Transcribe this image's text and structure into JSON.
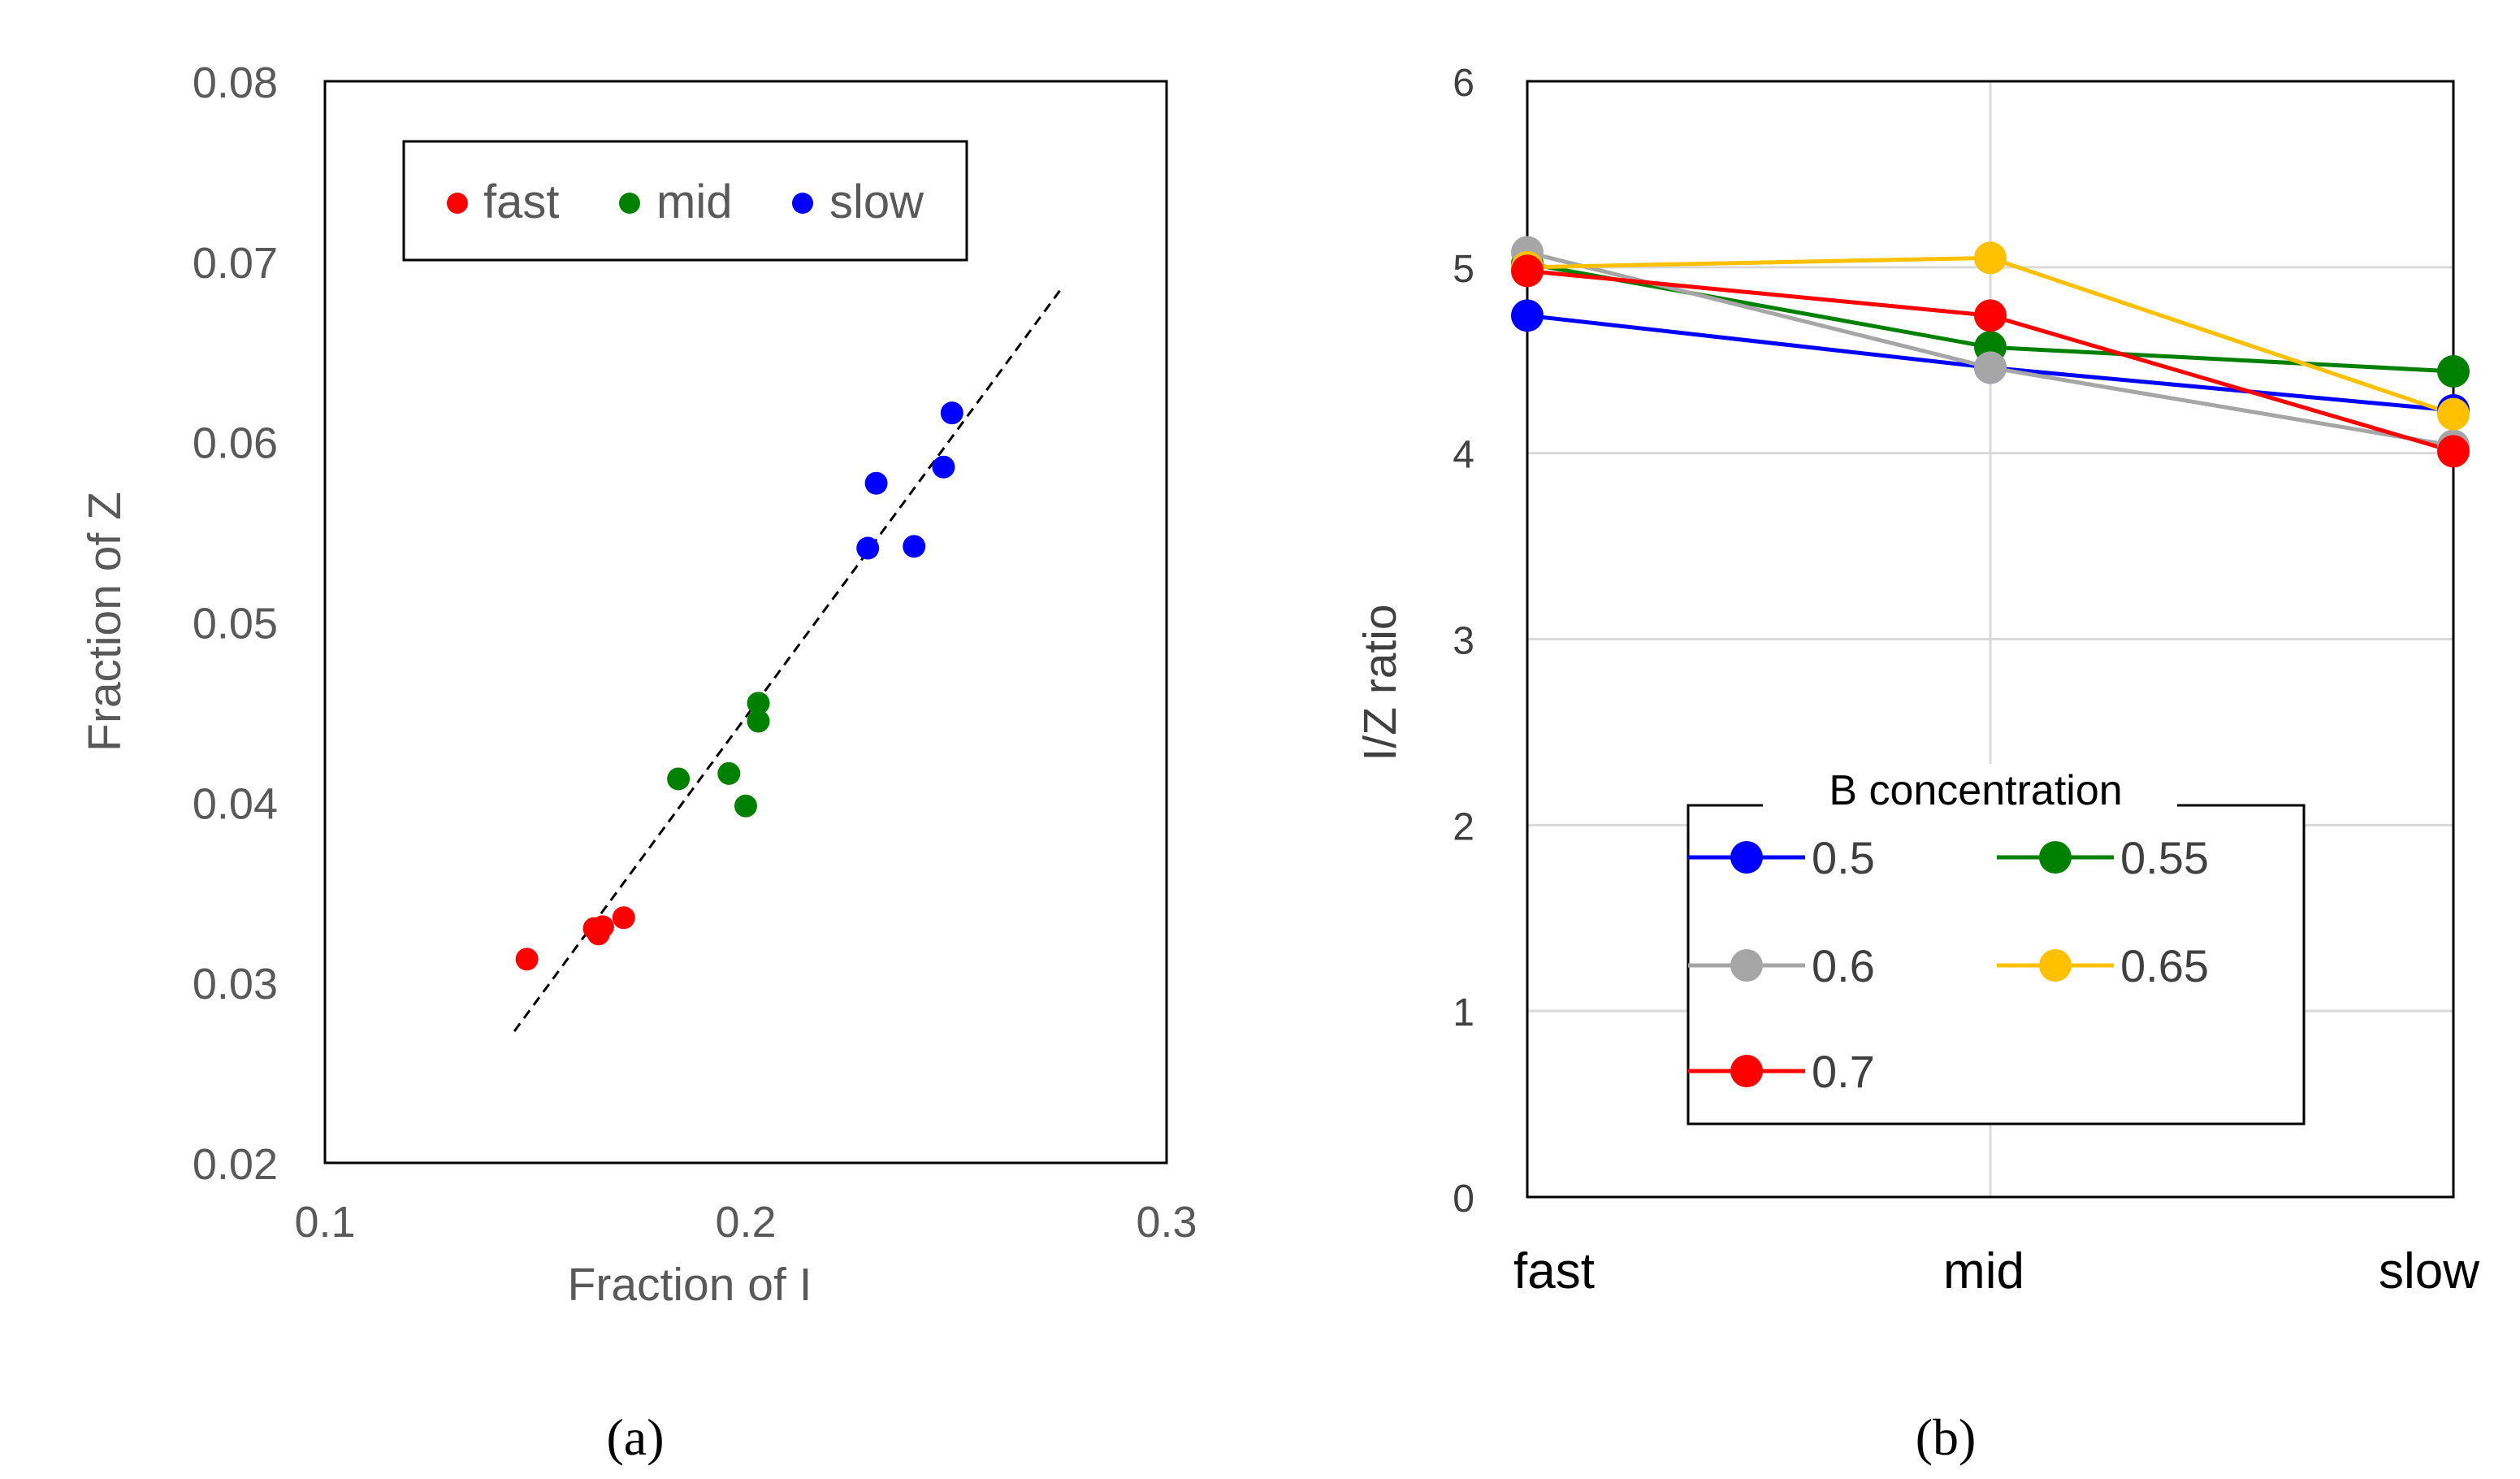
{
  "chart_data": [
    {
      "panel": "(a)",
      "type": "scatter",
      "title": "",
      "xlabel": "Fraction of I",
      "ylabel": "Fraction of Z",
      "xlim": [
        0.1,
        0.3
      ],
      "ylim": [
        0.02,
        0.08
      ],
      "xticks": [
        "0.1",
        "0.2",
        "0.3"
      ],
      "yticks": [
        "0.02",
        "0.03",
        "0.04",
        "0.05",
        "0.06",
        "0.07",
        "0.08"
      ],
      "grid": false,
      "legend_position": "top",
      "series": [
        {
          "name": "fast",
          "color": "#ff0000",
          "points": [
            [
              0.148,
              0.0313
            ],
            [
              0.164,
              0.033
            ],
            [
              0.165,
              0.0327
            ],
            [
              0.166,
              0.0331
            ],
            [
              0.171,
              0.0336
            ]
          ]
        },
        {
          "name": "mid",
          "color": "#008000",
          "points": [
            [
              0.184,
              0.0413
            ],
            [
              0.196,
              0.0416
            ],
            [
              0.2,
              0.0398
            ],
            [
              0.203,
              0.0455
            ],
            [
              0.203,
              0.0445
            ]
          ]
        },
        {
          "name": "slow",
          "color": "#0000ff",
          "points": [
            [
              0.229,
              0.0541
            ],
            [
              0.231,
              0.0577
            ],
            [
              0.24,
              0.0542
            ],
            [
              0.247,
              0.0586
            ],
            [
              0.249,
              0.0616
            ]
          ]
        }
      ],
      "trendline": {
        "style": "dashed",
        "x": [
          0.145,
          0.275
        ],
        "y": [
          0.0273,
          0.0685
        ]
      }
    },
    {
      "panel": "(b)",
      "type": "line",
      "title": "",
      "xlabel": "",
      "ylabel": "I/Z ratio",
      "categories": [
        "fast",
        "mid",
        "slow"
      ],
      "ylim": [
        0,
        6
      ],
      "yticks": [
        "0",
        "1",
        "2",
        "3",
        "4",
        "5",
        "6"
      ],
      "grid": true,
      "legend_title": "B concentration",
      "legend_position": "bottom-center",
      "series": [
        {
          "name": "0.5",
          "color": "#0000ff",
          "values": [
            4.74,
            4.46,
            4.23
          ]
        },
        {
          "name": "0.55",
          "color": "#008000",
          "values": [
            5.02,
            4.57,
            4.44
          ]
        },
        {
          "name": "0.6",
          "color": "#a6a6a6",
          "values": [
            5.08,
            4.46,
            4.04
          ]
        },
        {
          "name": "0.65",
          "color": "#ffc000",
          "values": [
            5.0,
            5.05,
            4.21
          ]
        },
        {
          "name": "0.7",
          "color": "#ff0000",
          "values": [
            4.98,
            4.74,
            4.01
          ]
        }
      ]
    }
  ]
}
